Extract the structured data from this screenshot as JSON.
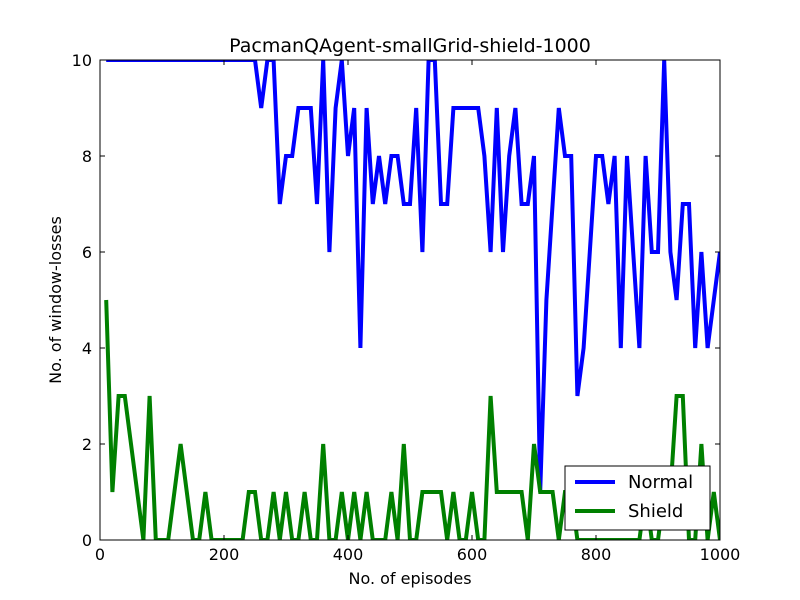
{
  "chart_data": {
    "type": "line",
    "title": "PacmanQAgent-smallGrid-shield-1000",
    "xlabel": "No. of episodes",
    "ylabel": "No. of window-losses",
    "xlim": [
      0,
      1000
    ],
    "ylim": [
      0,
      10
    ],
    "x_ticks": [
      "0",
      "200",
      "400",
      "600",
      "800",
      "1000"
    ],
    "y_ticks": [
      "0",
      "2",
      "4",
      "6",
      "8",
      "10"
    ],
    "grid": false,
    "legend_position": "lower-right",
    "series": [
      {
        "name": "Normal",
        "color": "#0000ff",
        "x": [
          10,
          20,
          30,
          40,
          50,
          60,
          70,
          80,
          90,
          100,
          110,
          120,
          130,
          140,
          150,
          160,
          170,
          180,
          190,
          200,
          210,
          220,
          230,
          240,
          250,
          260,
          270,
          280,
          290,
          300,
          310,
          320,
          330,
          340,
          350,
          360,
          370,
          380,
          390,
          400,
          410,
          420,
          430,
          440,
          450,
          460,
          470,
          480,
          490,
          500,
          510,
          520,
          530,
          540,
          550,
          560,
          570,
          580,
          590,
          600,
          610,
          620,
          630,
          640,
          650,
          660,
          670,
          680,
          690,
          700,
          710,
          720,
          730,
          740,
          750,
          760,
          770,
          780,
          790,
          800,
          810,
          820,
          830,
          840,
          850,
          860,
          870,
          880,
          890,
          900,
          910,
          920,
          930,
          940,
          950,
          960,
          970,
          980,
          990,
          1000
        ],
        "y": [
          10,
          10,
          10,
          10,
          10,
          10,
          10,
          10,
          10,
          10,
          10,
          10,
          10,
          10,
          10,
          10,
          10,
          10,
          10,
          10,
          10,
          10,
          10,
          10,
          10,
          9,
          10,
          10,
          7,
          8,
          8,
          9,
          9,
          9,
          7,
          10,
          6,
          9,
          10,
          8,
          9,
          4,
          9,
          7,
          8,
          7,
          8,
          8,
          7,
          7,
          9,
          6,
          10,
          10,
          7,
          7,
          9,
          9,
          9,
          9,
          9,
          8,
          6,
          9,
          6,
          8,
          9,
          7,
          7,
          8,
          1,
          5,
          7,
          9,
          8,
          8,
          3,
          4,
          6,
          8,
          8,
          7,
          8,
          4,
          8,
          6,
          4,
          8,
          6,
          6,
          10,
          6,
          5,
          7,
          7,
          4,
          6,
          4,
          5,
          6
        ]
      },
      {
        "name": "Shield",
        "color": "#008000",
        "x": [
          10,
          20,
          30,
          40,
          50,
          60,
          70,
          80,
          90,
          100,
          110,
          120,
          130,
          140,
          150,
          160,
          170,
          180,
          190,
          200,
          210,
          220,
          230,
          240,
          250,
          260,
          270,
          280,
          290,
          300,
          310,
          320,
          330,
          340,
          350,
          360,
          370,
          380,
          390,
          400,
          410,
          420,
          430,
          440,
          450,
          460,
          470,
          480,
          490,
          500,
          510,
          520,
          530,
          540,
          550,
          560,
          570,
          580,
          590,
          600,
          610,
          620,
          630,
          640,
          650,
          660,
          670,
          680,
          690,
          700,
          710,
          720,
          730,
          740,
          750,
          760,
          770,
          780,
          790,
          800,
          810,
          820,
          830,
          840,
          850,
          860,
          870,
          880,
          890,
          900,
          910,
          920,
          930,
          940,
          950,
          960,
          970,
          980,
          990,
          1000
        ],
        "y": [
          5,
          1,
          3,
          3,
          2,
          1,
          0,
          3,
          0,
          0,
          0,
          1,
          2,
          1,
          0,
          0,
          1,
          0,
          0,
          0,
          0,
          0,
          0,
          1,
          1,
          0,
          0,
          1,
          0,
          1,
          0,
          0,
          1,
          0,
          0,
          2,
          0,
          0,
          1,
          0,
          1,
          0,
          1,
          0,
          0,
          0,
          1,
          0,
          2,
          0,
          0,
          1,
          1,
          1,
          1,
          0,
          1,
          0,
          0,
          1,
          0,
          0,
          3,
          1,
          1,
          1,
          1,
          1,
          0,
          2,
          1,
          1,
          1,
          0,
          1,
          1,
          0,
          0,
          0,
          0,
          0,
          0,
          0,
          0,
          0,
          0,
          0,
          1,
          0,
          0,
          1,
          1,
          3,
          3,
          0,
          0,
          2,
          0,
          1,
          0
        ]
      }
    ]
  }
}
